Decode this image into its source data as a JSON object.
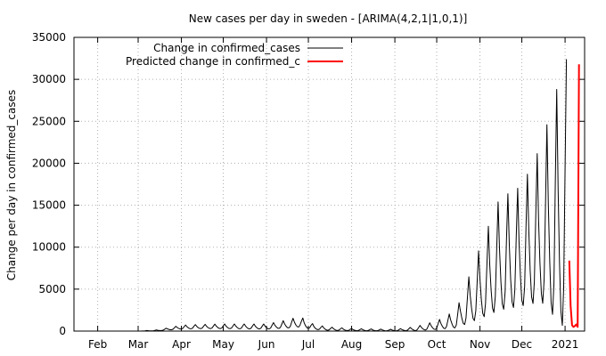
{
  "chart_data": {
    "type": "line",
    "title": "New cases per day in sweden -  [ARIMA(4,2,1|1,0,1)]",
    "xlabel": "",
    "ylabel": "Change per day in confirmed_cases",
    "ylim": [
      0,
      35000
    ],
    "y_ticks": [
      0,
      5000,
      10000,
      15000,
      20000,
      25000,
      30000,
      35000
    ],
    "x_range": [
      "2020-01-15",
      "2021-01-15"
    ],
    "x_ticks": [
      {
        "date": "2020-02-01",
        "label": "Feb"
      },
      {
        "date": "2020-03-01",
        "label": "Mar"
      },
      {
        "date": "2020-04-01",
        "label": "Apr"
      },
      {
        "date": "2020-05-01",
        "label": "May"
      },
      {
        "date": "2020-06-01",
        "label": "Jun"
      },
      {
        "date": "2020-07-01",
        "label": "Jul"
      },
      {
        "date": "2020-08-01",
        "label": "Aug"
      },
      {
        "date": "2020-09-01",
        "label": "Sep"
      },
      {
        "date": "2020-10-01",
        "label": "Oct"
      },
      {
        "date": "2020-11-01",
        "label": "Nov"
      },
      {
        "date": "2020-12-01",
        "label": "Dec"
      },
      {
        "date": "2021-01-01",
        "label": "2021"
      }
    ],
    "grid": true,
    "legend_position": "top-right",
    "series": [
      {
        "name": "Change in confirmed_cases",
        "color": "#000000",
        "weekly_pattern": {
          "start": "2020-02-01",
          "end": "2021-01-02",
          "anchor_days": [
            "2020-02-01",
            "2020-03-01",
            "2020-03-15",
            "2020-04-01",
            "2020-04-15",
            "2020-05-01",
            "2020-06-01",
            "2020-06-15",
            "2020-06-25",
            "2020-07-05",
            "2020-07-15",
            "2020-08-01",
            "2020-08-15",
            "2020-09-01",
            "2020-09-15",
            "2020-10-01",
            "2020-10-15",
            "2020-11-01",
            "2020-11-15",
            "2020-12-01",
            "2020-12-15",
            "2021-01-01"
          ],
          "peak": [
            0,
            0,
            150,
            700,
            800,
            850,
            850,
            1300,
            1750,
            800,
            500,
            300,
            250,
            200,
            500,
            1200,
            2500,
            10000,
            15800,
            17300,
            22200,
            32400
          ],
          "trough": [
            0,
            0,
            30,
            250,
            300,
            300,
            250,
            350,
            500,
            200,
            100,
            50,
            40,
            30,
            60,
            200,
            400,
            1500,
            2500,
            3000,
            3500,
            300
          ]
        }
      },
      {
        "name": "Predicted change in confirmed_c",
        "color": "#ff0000",
        "points": [
          {
            "date": "2021-01-04",
            "y": 8400
          },
          {
            "date": "2021-01-05",
            "y": 3000
          },
          {
            "date": "2021-01-06",
            "y": 700
          },
          {
            "date": "2021-01-07",
            "y": 500
          },
          {
            "date": "2021-01-08",
            "y": 600
          },
          {
            "date": "2021-01-09",
            "y": 800
          },
          {
            "date": "2021-01-10",
            "y": 500
          },
          {
            "date": "2021-01-11",
            "y": 31800
          }
        ]
      }
    ]
  }
}
